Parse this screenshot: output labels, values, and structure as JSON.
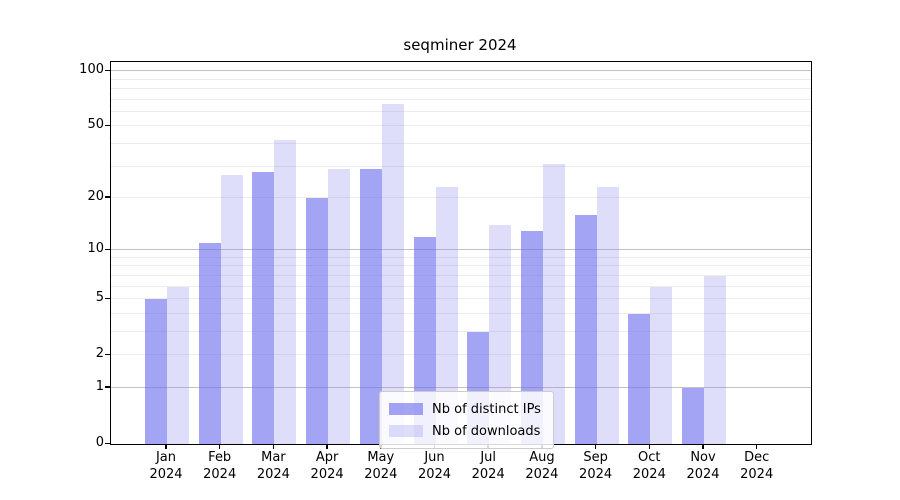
{
  "window": {
    "background": "#ffffff"
  },
  "chart_data": {
    "type": "bar",
    "title": "seqminer 2024",
    "categories": [
      "Jan 2024",
      "Feb 2024",
      "Mar 2024",
      "Apr 2024",
      "May 2024",
      "Jun 2024",
      "Jul 2024",
      "Aug 2024",
      "Sep 2024",
      "Oct 2024",
      "Nov 2024",
      "Dec 2024"
    ],
    "x_label_months": [
      "Jan",
      "Feb",
      "Mar",
      "Apr",
      "May",
      "Jun",
      "Jul",
      "Aug",
      "Sep",
      "Oct",
      "Nov",
      "Dec"
    ],
    "x_label_year": "2024",
    "series": [
      {
        "name": "Nb of distinct IPs",
        "values": [
          5,
          11,
          28,
          20,
          29,
          12,
          3,
          13,
          16,
          4,
          1,
          0
        ],
        "color": "rgba(108,108,238,0.62)"
      },
      {
        "name": "Nb of downloads",
        "values": [
          6,
          27,
          42,
          29,
          66,
          23,
          14,
          31,
          23,
          6,
          7,
          0
        ],
        "color": "rgba(138,138,240,0.28)"
      }
    ],
    "yscale": "log1p",
    "ylim": [
      0,
      112
    ],
    "yticks": [
      0,
      1,
      2,
      5,
      10,
      20,
      50,
      100
    ],
    "major_gridlines": [
      1,
      10,
      100
    ],
    "minor_gridlines": [
      2,
      3,
      4,
      5,
      6,
      7,
      8,
      9,
      20,
      30,
      40,
      50,
      60,
      70,
      80,
      90
    ],
    "grid": true,
    "legend_position": "inside-bottom-center",
    "colors": {
      "axis": "#000000",
      "grid_major": "#c2c2c2",
      "grid_minor": "#ececec",
      "title_text": "#000000",
      "tick_text": "#000000"
    }
  }
}
